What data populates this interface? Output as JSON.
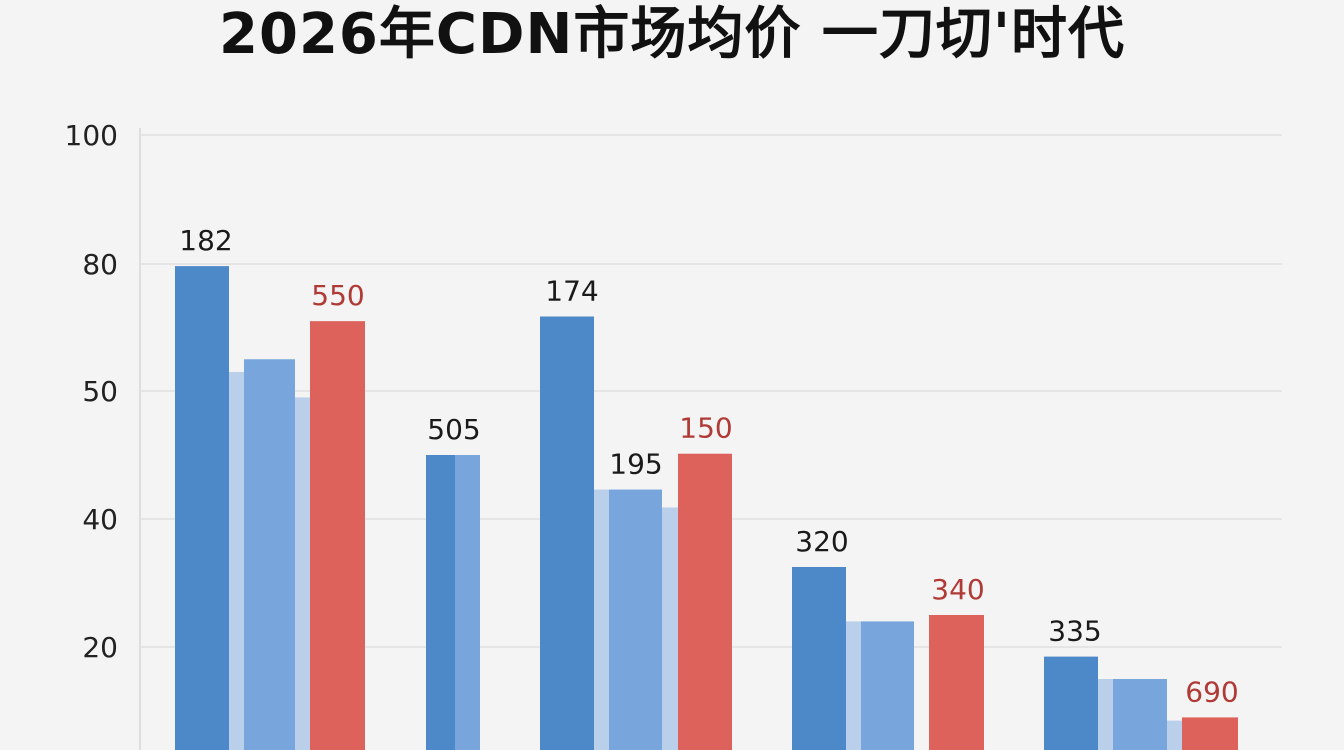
{
  "colors": {
    "dark_blue": "#4d88c8",
    "mid_blue": "#78a6dc",
    "pale_blue": "#b9cfea",
    "red": "#dd625c",
    "red_label": "#b03a35",
    "grid": "#e0e0e0"
  },
  "chart_data": {
    "type": "bar",
    "title": "2026年CDN市场均价 一刀切'时代",
    "xlabel": "",
    "ylabel": "",
    "y_ticks": [
      "100",
      "80",
      "50",
      "40",
      "20"
    ],
    "grid": true,
    "groups": [
      {
        "bars": [
          {
            "series": "dark_blue",
            "value": 79.5,
            "label": "182"
          },
          {
            "series": "pale_blue",
            "value": 54.5,
            "label": ""
          },
          {
            "series": "mid_blue",
            "value": 57.5,
            "label": ""
          },
          {
            "series": "pale_blue",
            "value": 49.5,
            "label": ""
          },
          {
            "series": "red",
            "value": 66.5,
            "label": "550"
          }
        ]
      },
      {
        "bars": [
          {
            "series": "dark_blue",
            "value": 45.0,
            "label": "505"
          },
          {
            "series": "mid_blue",
            "value": 45.0,
            "label": ""
          }
        ]
      },
      {
        "bars": [
          {
            "series": "dark_blue",
            "value": 67.6,
            "label": "174"
          },
          {
            "series": "pale_blue",
            "value": 42.3,
            "label": ""
          },
          {
            "series": "mid_blue",
            "value": 42.3,
            "label": "195"
          },
          {
            "series": "pale_blue",
            "value": 40.9,
            "label": ""
          },
          {
            "series": "red",
            "value": 45.1,
            "label": "150"
          }
        ]
      },
      {
        "bars": [
          {
            "series": "dark_blue",
            "value": 32.5,
            "label": "320"
          },
          {
            "series": "pale_blue",
            "value": 24.0,
            "label": ""
          },
          {
            "series": "mid_blue",
            "value": 24.0,
            "label": ""
          },
          {
            "series": "red",
            "value": 25.0,
            "label": "340"
          }
        ]
      },
      {
        "bars": [
          {
            "series": "dark_blue",
            "value": 18.5,
            "label": "335"
          },
          {
            "series": "pale_blue",
            "value": 15.0,
            "label": ""
          },
          {
            "series": "mid_blue",
            "value": 15.0,
            "label": ""
          },
          {
            "series": "pale_blue",
            "value": 8.5,
            "label": ""
          },
          {
            "series": "red",
            "value": 9.0,
            "label": "690"
          }
        ]
      }
    ]
  }
}
